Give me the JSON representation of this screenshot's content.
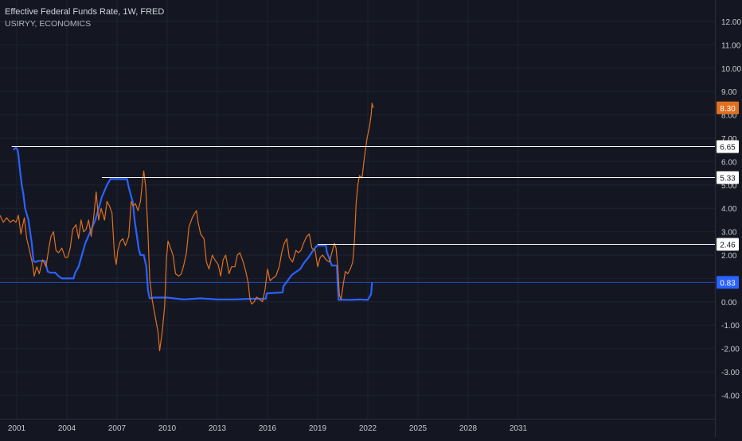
{
  "header": {
    "title": "Effective Federal Funds Rate, 1W, FRED",
    "subtitle": "USIRYY, ECONOMICS"
  },
  "colors": {
    "background": "#141722",
    "grid": "#1e2230",
    "axis_text": "#c8cad1",
    "fed_funds_line": "#2962ff",
    "cpi_line": "#e0701f",
    "hline": "#ffffff",
    "current_line": "#2962ff"
  },
  "chart_data": {
    "type": "line",
    "xlim": [
      2000.0,
      2035.0
    ],
    "ylim": [
      -4.9,
      12.6
    ],
    "x_ticks": [
      2001,
      2004,
      2007,
      2010,
      2013,
      2016,
      2019,
      2022,
      2025,
      2028,
      2031
    ],
    "x_tick_labels": [
      "2001",
      "2004",
      "2007",
      "2010",
      "2013",
      "2016",
      "2019",
      "2022",
      "2025",
      "2028",
      "2031"
    ],
    "y_ticks": [
      12,
      11,
      10,
      9,
      8,
      7,
      6,
      5,
      4,
      3,
      2,
      1,
      0,
      -1,
      -2,
      -3,
      -4
    ],
    "y_tick_labels": [
      "12.00",
      "11.00",
      "10.00",
      "9.00",
      "8.00",
      "7.00",
      "6.00",
      "5.00",
      "4.00",
      "3.00",
      "2.00",
      "1.00",
      "0.00",
      "-1.00",
      "-2.00",
      "-3.00",
      "-4.00"
    ],
    "grid": true,
    "series": [
      {
        "key": "fed",
        "values": [
          [
            2000.8,
            6.5
          ],
          [
            2000.95,
            6.6
          ],
          [
            2001.05,
            6.5
          ],
          [
            2001.1,
            6.3
          ],
          [
            2001.2,
            5.6
          ],
          [
            2001.3,
            5.0
          ],
          [
            2001.4,
            4.6
          ],
          [
            2001.5,
            4.0
          ],
          [
            2001.6,
            3.75
          ],
          [
            2001.7,
            3.5
          ],
          [
            2001.8,
            3.0
          ],
          [
            2001.9,
            2.5
          ],
          [
            2002.0,
            1.75
          ],
          [
            2002.1,
            1.7
          ],
          [
            2002.3,
            1.75
          ],
          [
            2002.5,
            1.75
          ],
          [
            2002.7,
            1.75
          ],
          [
            2002.85,
            1.3
          ],
          [
            2003.0,
            1.25
          ],
          [
            2003.3,
            1.25
          ],
          [
            2003.5,
            1.1
          ],
          [
            2003.7,
            1.0
          ],
          [
            2004.0,
            1.0
          ],
          [
            2004.4,
            1.0
          ],
          [
            2004.5,
            1.25
          ],
          [
            2004.7,
            1.5
          ],
          [
            2004.9,
            2.0
          ],
          [
            2005.1,
            2.5
          ],
          [
            2005.4,
            3.0
          ],
          [
            2005.7,
            3.5
          ],
          [
            2005.9,
            4.0
          ],
          [
            2006.1,
            4.5
          ],
          [
            2006.4,
            5.0
          ],
          [
            2006.6,
            5.25
          ],
          [
            2006.9,
            5.25
          ],
          [
            2007.2,
            5.25
          ],
          [
            2007.6,
            5.25
          ],
          [
            2007.7,
            4.9
          ],
          [
            2007.85,
            4.5
          ],
          [
            2007.95,
            4.25
          ],
          [
            2008.05,
            3.5
          ],
          [
            2008.15,
            3.0
          ],
          [
            2008.3,
            2.25
          ],
          [
            2008.4,
            2.0
          ],
          [
            2008.6,
            2.0
          ],
          [
            2008.75,
            1.5
          ],
          [
            2008.85,
            0.5
          ],
          [
            2008.95,
            0.15
          ],
          [
            2009.2,
            0.18
          ],
          [
            2010.0,
            0.18
          ],
          [
            2011.0,
            0.1
          ],
          [
            2012.0,
            0.15
          ],
          [
            2013.0,
            0.1
          ],
          [
            2014.0,
            0.1
          ],
          [
            2015.0,
            0.13
          ],
          [
            2015.9,
            0.13
          ],
          [
            2015.95,
            0.36
          ],
          [
            2016.9,
            0.4
          ],
          [
            2016.95,
            0.66
          ],
          [
            2017.2,
            0.9
          ],
          [
            2017.45,
            1.15
          ],
          [
            2017.95,
            1.4
          ],
          [
            2018.2,
            1.68
          ],
          [
            2018.45,
            1.9
          ],
          [
            2018.7,
            2.17
          ],
          [
            2018.95,
            2.4
          ],
          [
            2019.5,
            2.4
          ],
          [
            2019.55,
            2.13
          ],
          [
            2019.7,
            1.85
          ],
          [
            2019.85,
            1.55
          ],
          [
            2020.15,
            1.55
          ],
          [
            2020.2,
            0.65
          ],
          [
            2020.25,
            0.08
          ],
          [
            2020.7,
            0.09
          ],
          [
            2021.0,
            0.08
          ],
          [
            2021.5,
            0.1
          ],
          [
            2022.0,
            0.08
          ],
          [
            2022.2,
            0.33
          ],
          [
            2022.25,
            0.83
          ]
        ]
      },
      {
        "key": "cpi",
        "values": [
          [
            2000.0,
            3.7
          ],
          [
            2000.2,
            3.4
          ],
          [
            2000.4,
            3.6
          ],
          [
            2000.6,
            3.4
          ],
          [
            2000.8,
            3.5
          ],
          [
            2000.95,
            3.4
          ],
          [
            2001.1,
            3.7
          ],
          [
            2001.25,
            2.9
          ],
          [
            2001.45,
            3.6
          ],
          [
            2001.6,
            2.7
          ],
          [
            2001.8,
            2.1
          ],
          [
            2001.95,
            1.6
          ],
          [
            2002.05,
            1.1
          ],
          [
            2002.2,
            1.5
          ],
          [
            2002.35,
            1.2
          ],
          [
            2002.55,
            1.8
          ],
          [
            2002.75,
            1.5
          ],
          [
            2002.9,
            2.2
          ],
          [
            2003.05,
            2.8
          ],
          [
            2003.2,
            3.0
          ],
          [
            2003.35,
            2.2
          ],
          [
            2003.5,
            2.1
          ],
          [
            2003.7,
            2.3
          ],
          [
            2003.9,
            1.9
          ],
          [
            2004.05,
            1.9
          ],
          [
            2004.2,
            2.3
          ],
          [
            2004.35,
            3.1
          ],
          [
            2004.55,
            3.3
          ],
          [
            2004.7,
            2.7
          ],
          [
            2004.85,
            3.5
          ],
          [
            2005.0,
            3.0
          ],
          [
            2005.15,
            3.1
          ],
          [
            2005.3,
            3.5
          ],
          [
            2005.45,
            2.8
          ],
          [
            2005.6,
            3.6
          ],
          [
            2005.75,
            4.7
          ],
          [
            2005.9,
            3.5
          ],
          [
            2006.05,
            4.0
          ],
          [
            2006.25,
            3.5
          ],
          [
            2006.4,
            4.3
          ],
          [
            2006.55,
            4.1
          ],
          [
            2006.7,
            3.8
          ],
          [
            2006.85,
            2.0
          ],
          [
            2006.95,
            1.6
          ],
          [
            2007.05,
            2.2
          ],
          [
            2007.2,
            2.6
          ],
          [
            2007.35,
            2.7
          ],
          [
            2007.5,
            2.4
          ],
          [
            2007.7,
            2.8
          ],
          [
            2007.85,
            4.3
          ],
          [
            2007.95,
            4.1
          ],
          [
            2008.1,
            4.2
          ],
          [
            2008.25,
            3.9
          ],
          [
            2008.4,
            4.3
          ],
          [
            2008.5,
            5.0
          ],
          [
            2008.6,
            5.6
          ],
          [
            2008.72,
            4.9
          ],
          [
            2008.85,
            3.0
          ],
          [
            2008.95,
            1.0
          ],
          [
            2009.1,
            0.1
          ],
          [
            2009.3,
            -0.7
          ],
          [
            2009.45,
            -1.3
          ],
          [
            2009.55,
            -2.1
          ],
          [
            2009.7,
            -1.3
          ],
          [
            2009.85,
            -0.2
          ],
          [
            2009.95,
            1.8
          ],
          [
            2010.05,
            2.6
          ],
          [
            2010.2,
            2.3
          ],
          [
            2010.35,
            2.0
          ],
          [
            2010.5,
            1.2
          ],
          [
            2010.7,
            1.1
          ],
          [
            2010.85,
            1.2
          ],
          [
            2011.0,
            1.6
          ],
          [
            2011.15,
            2.1
          ],
          [
            2011.3,
            3.2
          ],
          [
            2011.5,
            3.6
          ],
          [
            2011.65,
            3.8
          ],
          [
            2011.75,
            3.9
          ],
          [
            2011.85,
            3.4
          ],
          [
            2012.0,
            2.9
          ],
          [
            2012.2,
            2.7
          ],
          [
            2012.35,
            1.7
          ],
          [
            2012.5,
            1.4
          ],
          [
            2012.7,
            2.0
          ],
          [
            2012.85,
            1.8
          ],
          [
            2013.05,
            1.6
          ],
          [
            2013.2,
            1.1
          ],
          [
            2013.35,
            1.8
          ],
          [
            2013.5,
            2.0
          ],
          [
            2013.7,
            1.2
          ],
          [
            2013.85,
            1.5
          ],
          [
            2014.05,
            1.5
          ],
          [
            2014.2,
            2.0
          ],
          [
            2014.35,
            2.1
          ],
          [
            2014.55,
            1.7
          ],
          [
            2014.7,
            1.3
          ],
          [
            2014.85,
            0.8
          ],
          [
            2014.95,
            0.1
          ],
          [
            2015.05,
            -0.1
          ],
          [
            2015.2,
            0.0
          ],
          [
            2015.35,
            0.2
          ],
          [
            2015.55,
            0.1
          ],
          [
            2015.7,
            0.0
          ],
          [
            2015.85,
            0.5
          ],
          [
            2016.0,
            1.4
          ],
          [
            2016.15,
            0.9
          ],
          [
            2016.3,
            1.0
          ],
          [
            2016.5,
            1.1
          ],
          [
            2016.7,
            1.5
          ],
          [
            2016.85,
            2.1
          ],
          [
            2017.0,
            2.5
          ],
          [
            2017.15,
            2.7
          ],
          [
            2017.3,
            1.9
          ],
          [
            2017.5,
            1.7
          ],
          [
            2017.7,
            2.2
          ],
          [
            2017.85,
            2.1
          ],
          [
            2018.0,
            2.2
          ],
          [
            2018.15,
            2.5
          ],
          [
            2018.35,
            2.8
          ],
          [
            2018.5,
            2.9
          ],
          [
            2018.65,
            2.3
          ],
          [
            2018.85,
            2.2
          ],
          [
            2019.0,
            1.5
          ],
          [
            2019.15,
            1.9
          ],
          [
            2019.3,
            2.0
          ],
          [
            2019.5,
            1.8
          ],
          [
            2019.7,
            1.7
          ],
          [
            2019.85,
            2.1
          ],
          [
            2020.0,
            2.5
          ],
          [
            2020.1,
            2.3
          ],
          [
            2020.2,
            1.5
          ],
          [
            2020.3,
            0.3
          ],
          [
            2020.4,
            0.1
          ],
          [
            2020.5,
            0.6
          ],
          [
            2020.65,
            1.3
          ],
          [
            2020.8,
            1.2
          ],
          [
            2020.95,
            1.4
          ],
          [
            2021.1,
            1.7
          ],
          [
            2021.2,
            2.6
          ],
          [
            2021.3,
            4.2
          ],
          [
            2021.4,
            5.0
          ],
          [
            2021.5,
            5.4
          ],
          [
            2021.65,
            5.3
          ],
          [
            2021.8,
            6.2
          ],
          [
            2021.95,
            7.0
          ],
          [
            2022.1,
            7.5
          ],
          [
            2022.2,
            8.0
          ],
          [
            2022.25,
            8.5
          ],
          [
            2022.32,
            8.3
          ]
        ]
      }
    ],
    "hlines": [
      {
        "value": 6.65,
        "label": "6.65",
        "x_start": 2000.7
      },
      {
        "value": 5.33,
        "label": "5.33",
        "x_start": 2006.1
      },
      {
        "value": 2.46,
        "label": "2.46",
        "x_start": 2019.0
      }
    ],
    "price_labels": [
      {
        "value": 8.3,
        "label": "8.30",
        "series": "cpi"
      },
      {
        "value": 0.83,
        "label": "0.83",
        "series": "fed"
      }
    ]
  }
}
